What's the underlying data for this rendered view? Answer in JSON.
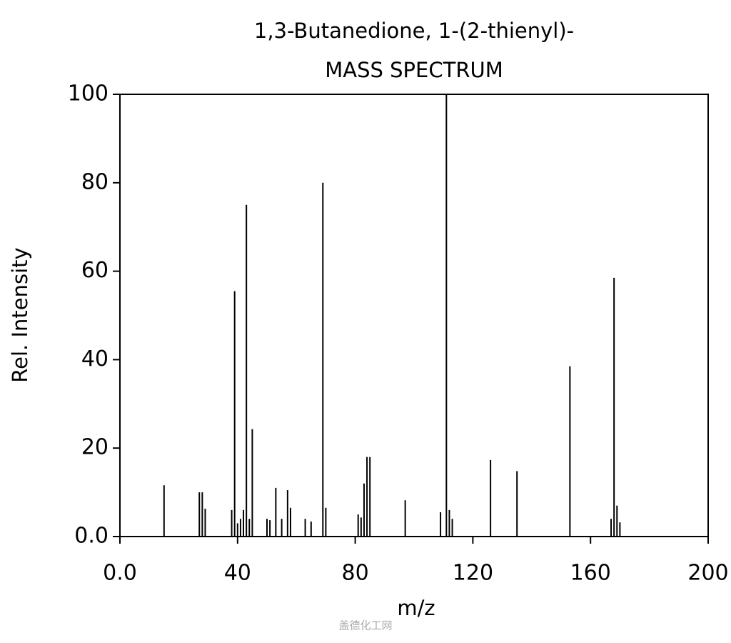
{
  "chart_data": {
    "type": "stem",
    "title": "1,3-Butanedione, 1-(2-thienyl)-",
    "subtitle": "MASS SPECTRUM",
    "xlabel": "m/z",
    "ylabel": "Rel. Intensity",
    "watermark": "盖德化工网",
    "x": [
      15,
      27,
      28,
      29,
      38,
      39,
      40,
      41,
      42,
      43,
      44,
      45,
      50,
      51,
      53,
      55,
      57,
      58,
      63,
      65,
      69,
      70,
      81,
      82,
      83,
      84,
      85,
      97,
      109,
      111,
      112,
      113,
      126,
      135,
      153,
      167,
      168,
      169,
      170
    ],
    "values": [
      11.6,
      10,
      10,
      6.3,
      6,
      55.5,
      3,
      4,
      6,
      75,
      4,
      24.3,
      4,
      3.7,
      11,
      4,
      10.5,
      6.5,
      4,
      3.4,
      80,
      6.5,
      5,
      4.3,
      12,
      18,
      18,
      8.2,
      5.5,
      100,
      6,
      4,
      17.3,
      14.8,
      38.5,
      4,
      58.5,
      7,
      3.2
    ],
    "color": "#000000",
    "xlim": [
      0,
      200
    ],
    "xticks": [
      {
        "value": 0,
        "label": "0.0"
      },
      40,
      80,
      120,
      160,
      200
    ],
    "ylim": [
      0,
      100
    ],
    "yticks": [
      {
        "value": 0,
        "label": "0.0"
      },
      20,
      40,
      60,
      80,
      100
    ],
    "grid": false
  }
}
